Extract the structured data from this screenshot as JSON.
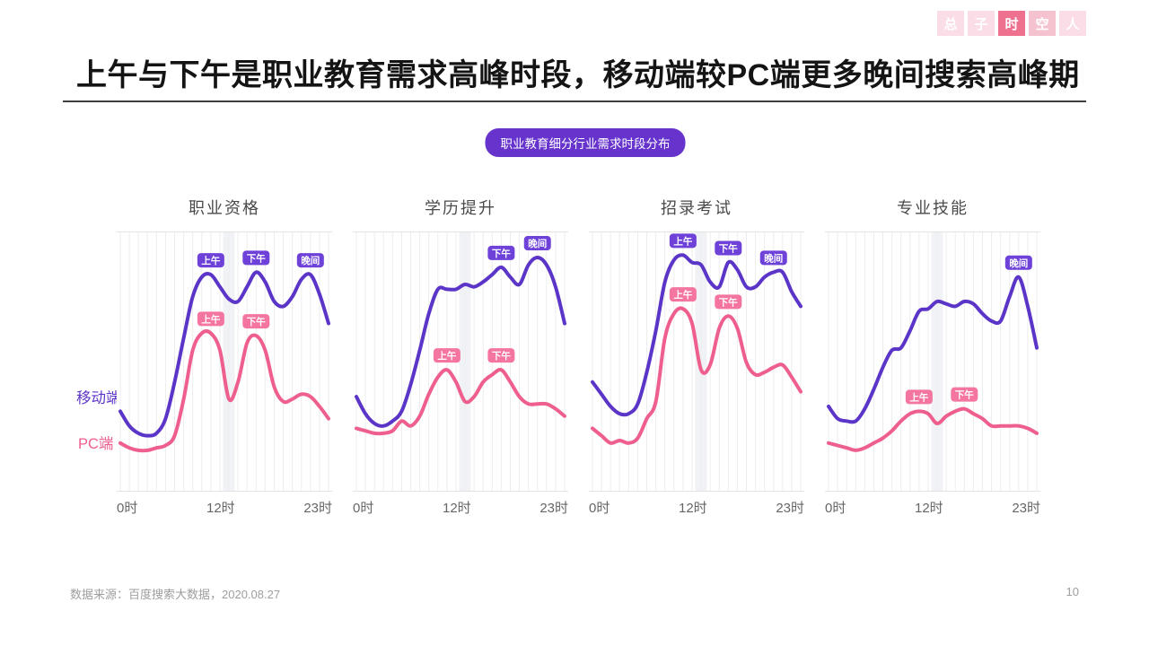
{
  "nav": {
    "items": [
      {
        "label": "总",
        "state": "light"
      },
      {
        "label": "子",
        "state": "light"
      },
      {
        "label": "时",
        "state": "active"
      },
      {
        "label": "空",
        "state": "medium"
      },
      {
        "label": "人",
        "state": "light"
      }
    ]
  },
  "header": {
    "title": "上午与下午是职业教育需求高峰时段，移动端较PC端更多晚间搜索高峰期",
    "tag": "职业教育细分行业需求时段分布"
  },
  "legend": {
    "mobile": "移动端",
    "pc": "PC端"
  },
  "footer": {
    "source": "数据来源：百度搜索大数据，2020.08.27",
    "page_number": "10"
  },
  "style": {
    "mobile_line": "#5b34c8",
    "pc_line": "#ee5f8d",
    "mobile_badge": "#6e42d9",
    "pc_badge": "#f4759f",
    "tag_bg": "#6633cc",
    "nav_active": "#ee7290",
    "nav_medium": "#f5c3d0",
    "nav_light": "#fadde6",
    "grid_color": "#ededed",
    "band_color": "#f1f2f6",
    "border_color": "#e3e3e3"
  },
  "chart_data": [
    {
      "type": "line",
      "title": "职业资格",
      "x_hours": [
        0,
        1,
        2,
        3,
        4,
        5,
        6,
        7,
        8,
        9,
        10,
        11,
        12,
        13,
        14,
        15,
        16,
        17,
        18,
        19,
        20,
        21,
        22,
        23
      ],
      "xticks": [
        "0时",
        "12时",
        "23时"
      ],
      "ylim": [
        0,
        100
      ],
      "series": [
        {
          "name": "移动端",
          "key": "mobile",
          "values": [
            30,
            24,
            21,
            20,
            21,
            27,
            42,
            60,
            77,
            85,
            86,
            81,
            76,
            75,
            81,
            87,
            83,
            75,
            73,
            77,
            84,
            86,
            78,
            66
          ],
          "peaks": [
            {
              "label": "上午",
              "hour": 10
            },
            {
              "label": "下午",
              "hour": 15
            },
            {
              "label": "晚间",
              "hour": 21
            }
          ]
        },
        {
          "name": "PC端",
          "key": "pc",
          "values": [
            17,
            15,
            14,
            14,
            15,
            16,
            20,
            35,
            55,
            62,
            62,
            55,
            35,
            42,
            58,
            61,
            55,
            40,
            34,
            35,
            37,
            36,
            32,
            27
          ],
          "peaks": [
            {
              "label": "上午",
              "hour": 10
            },
            {
              "label": "下午",
              "hour": 15
            }
          ]
        }
      ]
    },
    {
      "type": "line",
      "title": "学历提升",
      "x_hours": [
        0,
        1,
        2,
        3,
        4,
        5,
        6,
        7,
        8,
        9,
        10,
        11,
        12,
        13,
        14,
        15,
        16,
        17,
        18,
        19,
        20,
        21,
        22,
        23
      ],
      "xticks": [
        "0时",
        "12时",
        "23时"
      ],
      "ylim": [
        0,
        100
      ],
      "series": [
        {
          "name": "移动端",
          "key": "mobile",
          "values": [
            36,
            29,
            25,
            24,
            26,
            30,
            41,
            55,
            70,
            80,
            80,
            80,
            82,
            81,
            83,
            86,
            89,
            85,
            82,
            90,
            93,
            90,
            81,
            66
          ],
          "peaks": [
            {
              "label": "下午",
              "hour": 16
            },
            {
              "label": "晚间",
              "hour": 20
            }
          ]
        },
        {
          "name": "PC端",
          "key": "pc",
          "values": [
            23,
            22,
            21,
            21,
            22,
            26,
            24,
            28,
            37,
            44,
            47,
            42,
            34,
            36,
            42,
            45,
            47,
            42,
            36,
            33,
            33,
            33,
            31,
            28
          ],
          "peaks": [
            {
              "label": "上午",
              "hour": 10
            },
            {
              "label": "下午",
              "hour": 16
            }
          ]
        }
      ]
    },
    {
      "type": "line",
      "title": "招录考试",
      "x_hours": [
        0,
        1,
        2,
        3,
        4,
        5,
        6,
        7,
        8,
        9,
        10,
        11,
        12,
        13,
        14,
        15,
        16,
        17,
        18,
        19,
        20,
        21,
        22,
        23
      ],
      "xticks": [
        "0时",
        "12时",
        "23时"
      ],
      "ylim": [
        0,
        100
      ],
      "series": [
        {
          "name": "移动端",
          "key": "mobile",
          "values": [
            42,
            37,
            32,
            29,
            29,
            33,
            46,
            63,
            83,
            92,
            94,
            91,
            90,
            83,
            81,
            91,
            88,
            81,
            81,
            85,
            87,
            87,
            79,
            73
          ],
          "peaks": [
            {
              "label": "上午",
              "hour": 10
            },
            {
              "label": "下午",
              "hour": 15
            },
            {
              "label": "晚间",
              "hour": 20
            }
          ]
        },
        {
          "name": "PC端",
          "key": "pc",
          "values": [
            23,
            20,
            17,
            18,
            17,
            19,
            27,
            34,
            60,
            70,
            72,
            66,
            47,
            49,
            64,
            69,
            64,
            50,
            45,
            46,
            48,
            49,
            44,
            38
          ],
          "peaks": [
            {
              "label": "上午",
              "hour": 10
            },
            {
              "label": "下午",
              "hour": 15
            }
          ]
        }
      ]
    },
    {
      "type": "line",
      "title": "专业技能",
      "x_hours": [
        0,
        1,
        2,
        3,
        4,
        5,
        6,
        7,
        8,
        9,
        10,
        11,
        12,
        13,
        14,
        15,
        16,
        17,
        18,
        19,
        20,
        21,
        22,
        23
      ],
      "xticks": [
        "0时",
        "12时",
        "23时"
      ],
      "ylim": [
        0,
        100
      ],
      "series": [
        {
          "name": "移动端",
          "key": "mobile",
          "values": [
            32,
            27,
            26,
            26,
            31,
            39,
            48,
            55,
            56,
            63,
            71,
            72,
            75,
            74,
            73,
            75,
            74,
            70,
            67,
            67,
            77,
            85,
            73,
            56
          ],
          "peaks": [
            {
              "label": "晚间",
              "hour": 21
            }
          ]
        },
        {
          "name": "PC端",
          "key": "pc",
          "values": [
            17,
            16,
            15,
            14,
            15,
            17,
            19,
            22,
            26,
            29,
            30,
            29,
            25,
            28,
            30,
            31,
            29,
            27,
            24,
            24,
            24,
            24,
            23,
            21
          ],
          "peaks": [
            {
              "label": "上午",
              "hour": 10
            },
            {
              "label": "下午",
              "hour": 15
            }
          ]
        }
      ]
    }
  ]
}
